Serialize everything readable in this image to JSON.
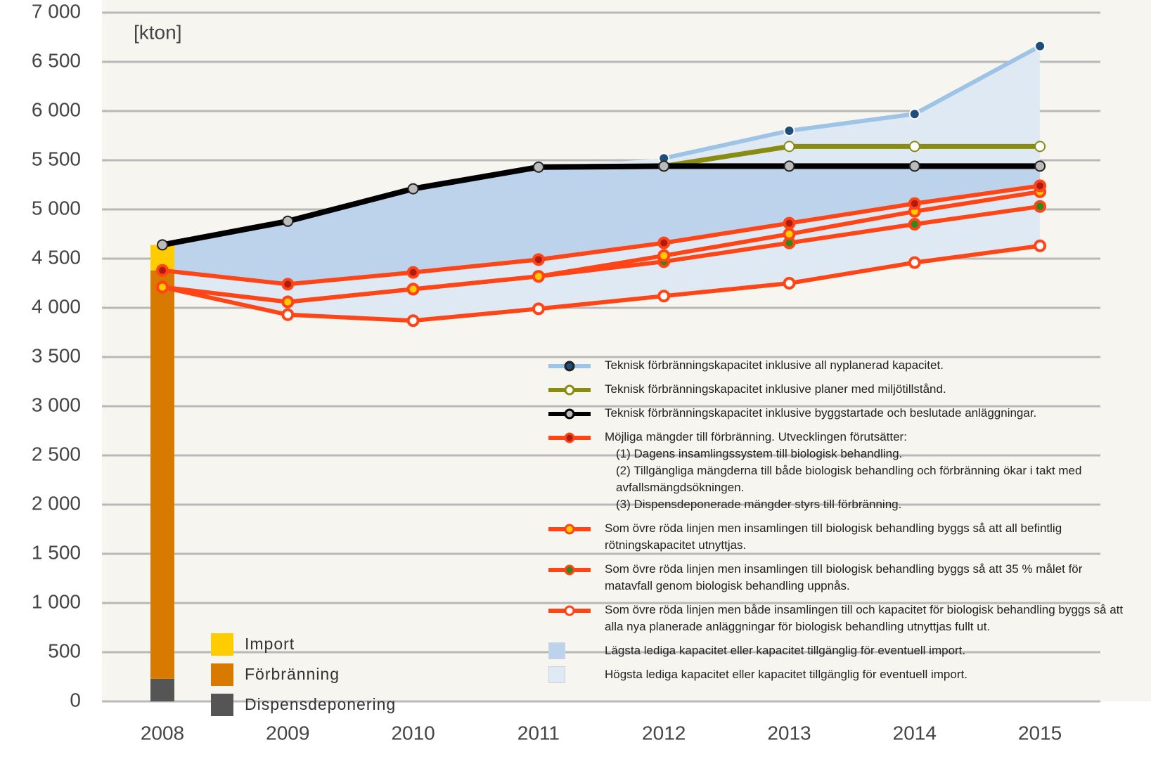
{
  "chart_data": {
    "type": "line",
    "unit": "[kton]",
    "categories": [
      "2008",
      "2009",
      "2010",
      "2011",
      "2012",
      "2013",
      "2014",
      "2015"
    ],
    "ylim": [
      0,
      7000
    ],
    "yticks": [
      0,
      500,
      {
        "value": 1000,
        "label": "1 000"
      },
      {
        "value": 1500,
        "label": "1 500"
      },
      {
        "value": 2000,
        "label": "2 000"
      },
      {
        "value": 2500,
        "label": "2 500"
      },
      {
        "value": 3000,
        "label": "3 000"
      },
      {
        "value": 3500,
        "label": "3 500"
      },
      {
        "value": 4000,
        "label": "4 000"
      },
      {
        "value": 4500,
        "label": "4 500"
      },
      {
        "value": 5000,
        "label": "5 000"
      },
      {
        "value": 5500,
        "label": "5 500"
      },
      {
        "value": 6000,
        "label": "6 000"
      },
      {
        "value": 6500,
        "label": "6 500"
      },
      {
        "value": 7000,
        "label": "7 000"
      }
    ],
    "grid": true,
    "series": [
      {
        "name": "Teknisk förbränningskapacitet inklusive all nyplanerad kapacitet.",
        "color": "#9dc3e6",
        "marker_color": "#1f4e79",
        "values": [
          null,
          null,
          null,
          null,
          5520,
          5800,
          5970,
          6660
        ]
      },
      {
        "name": "Teknisk förbränningskapacitet inklusive planer med miljötillstånd.",
        "color": "#8a8c12",
        "marker_color": "#ffffff",
        "values": [
          null,
          null,
          null,
          null,
          5440,
          5640,
          5640,
          5640
        ]
      },
      {
        "name": "Teknisk förbränningskapacitet inklusive byggstartade och beslutade anläggningar.",
        "color": "#000000",
        "marker_color": "#bbbbbb",
        "values": [
          4640,
          4880,
          5210,
          5430,
          5440,
          5440,
          5440,
          5440
        ]
      },
      {
        "name": "Möjliga mängder till förbränning. Utvecklingen förutsätter:",
        "notes": [
          "(1) Dagens insamlingssystem till biologisk behandling.",
          "(2) Tillgängliga mängderna till både biologisk behandling och förbränning ökar i takt med avfallsmängdsökningen.",
          "(3) Dispensdeponerade mängder styrs till förbränning."
        ],
        "color": "#ff4515",
        "marker_color": "#b01a10",
        "values": [
          4380,
          4240,
          4360,
          4490,
          4660,
          4860,
          5060,
          5240
        ]
      },
      {
        "name": "Som övre röda linjen men insamlingen till biologisk behandling byggs så att all befintlig rötningskapacitet utnyttjas.",
        "color": "#ff4515",
        "marker_color": "#ffcc00",
        "values": [
          4210,
          4060,
          4190,
          4320,
          4530,
          4750,
          4980,
          5180
        ]
      },
      {
        "name": "Som övre röda linjen men insamlingen till biologisk behandling byggs så att 35 % målet för matavfall genom biologisk behandling uppnås.",
        "color": "#ff4515",
        "marker_color": "#2a8a1a",
        "values": [
          4210,
          4060,
          4190,
          4320,
          4470,
          4660,
          4850,
          5030
        ]
      },
      {
        "name": "Som övre röda linjen men både insamlingen till och kapacitet för biologisk behandling byggs så att alla nya planerade anläggningar för biologisk behandling utnyttjas fullt ut.",
        "color": "#ff4515",
        "marker_color": "#ffffff",
        "values": [
          4210,
          3930,
          3870,
          3990,
          4120,
          4250,
          4460,
          4630
        ]
      }
    ],
    "areas": [
      {
        "name": "Lägsta lediga kapacitet eller kapacitet tillgänglig för eventuell import.",
        "color": "#bdd3eb"
      },
      {
        "name": "Högsta lediga kapacitet eller kapacitet tillgänglig för eventuell import.",
        "color": "#dfe9f4"
      }
    ],
    "bar_series": [
      {
        "name": "Dispensdeponering",
        "color": "#555555",
        "values": [
          230,
          null,
          null,
          null,
          null,
          null,
          null,
          null
        ]
      },
      {
        "name": "Förbränning",
        "color": "#d97a00",
        "values": [
          4150,
          null,
          null,
          null,
          null,
          null,
          null,
          null
        ]
      },
      {
        "name": "Import",
        "color": "#ffcc00",
        "values": [
          260,
          null,
          null,
          null,
          null,
          null,
          null,
          null
        ]
      }
    ]
  }
}
